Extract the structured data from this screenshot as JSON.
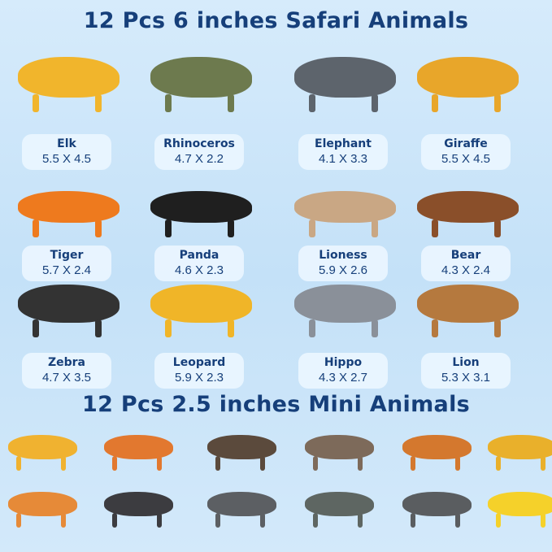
{
  "titles": {
    "safari": "12 Pcs 6 inches Safari Animals",
    "mini": "12 Pcs 2.5 inches Mini Animals"
  },
  "safari_animals": [
    {
      "name": "Elk",
      "size": "5.5 X 4.5",
      "color": "#f1b52c"
    },
    {
      "name": "Rhinoceros",
      "size": "4.7 X 2.2",
      "color": "#6d7a4e"
    },
    {
      "name": "Elephant",
      "size": "4.1 X 3.3",
      "color": "#5d646c"
    },
    {
      "name": "Giraffe",
      "size": "5.5 X 4.5",
      "color": "#e8a62a"
    },
    {
      "name": "Tiger",
      "size": "5.7 X 2.4",
      "color": "#ee7a1e"
    },
    {
      "name": "Panda",
      "size": "4.6 X 2.3",
      "color": "#1f1f1f"
    },
    {
      "name": "Lioness",
      "size": "5.9 X 2.6",
      "color": "#c9a784"
    },
    {
      "name": "Bear",
      "size": "4.3 X 2.4",
      "color": "#8a4f2a"
    },
    {
      "name": "Zebra",
      "size": "4.7 X 3.5",
      "color": "#333333"
    },
    {
      "name": "Leopard",
      "size": "5.9 X 2.3",
      "color": "#f0b528"
    },
    {
      "name": "Hippo",
      "size": "4.3 X 2.7",
      "color": "#8a9099"
    },
    {
      "name": "Lion",
      "size": "5.3 X 3.1",
      "color": "#b5793e"
    }
  ],
  "mini_animals": [
    {
      "color": "#f0b230"
    },
    {
      "color": "#e2782f"
    },
    {
      "color": "#5b4a3c"
    },
    {
      "color": "#7d6a5a"
    },
    {
      "color": "#d4782e"
    },
    {
      "color": "#e9b02b"
    },
    {
      "color": "#e68a38"
    },
    {
      "color": "#3c3c40"
    },
    {
      "color": "#5c5f63"
    },
    {
      "color": "#5e6662"
    },
    {
      "color": "#5a5d60"
    },
    {
      "color": "#f5d12a"
    }
  ]
}
